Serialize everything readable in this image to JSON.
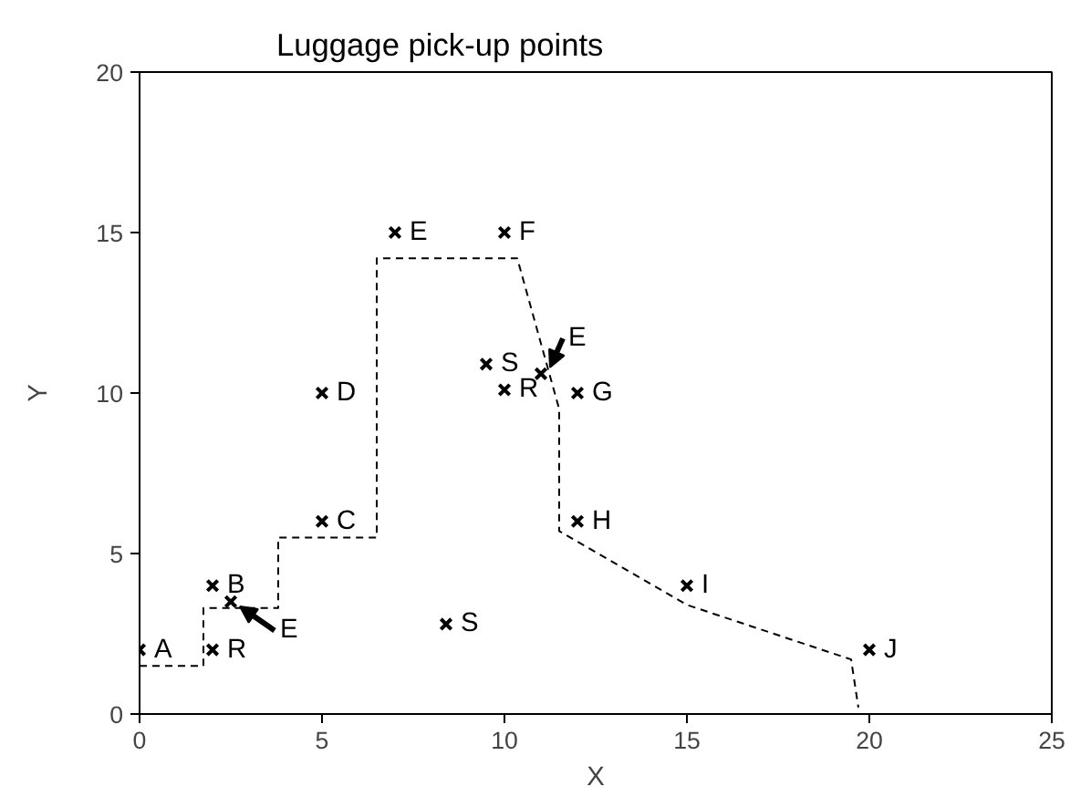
{
  "chart_data": {
    "type": "scatter",
    "title": "Luggage pick-up points",
    "xlabel": "X",
    "ylabel": "Y",
    "xlim": [
      0,
      25
    ],
    "ylim": [
      0,
      20
    ],
    "xticks": [
      0,
      5,
      10,
      15,
      20,
      25
    ],
    "yticks": [
      0,
      5,
      10,
      15,
      20
    ],
    "grid": false,
    "marker": "cross",
    "series": [
      {
        "color": "#000000",
        "x": [
          0,
          2,
          2,
          2.5,
          5,
          5,
          7,
          10,
          9.5,
          10,
          11,
          12,
          12,
          15,
          20,
          8.4
        ],
        "values": [
          2,
          4,
          2,
          3.5,
          6,
          10,
          15,
          15,
          10.9,
          10.1,
          10.6,
          10,
          6,
          4,
          2,
          2.8
        ],
        "value_labels": [
          "A",
          "B",
          "R",
          null,
          "C",
          "D",
          "E",
          "F",
          "S",
          "R",
          null,
          "G",
          "H",
          "I",
          "J",
          "S"
        ]
      },
      {
        "type": "line",
        "marker": "none",
        "line_style": "dashed",
        "color": "#000000",
        "x": [
          0,
          1.75,
          1.75,
          3.8,
          3.8,
          6.5,
          6.5,
          10.35,
          11.5,
          11.5,
          15,
          19.5,
          19.7
        ],
        "values": [
          1.5,
          1.5,
          3.3,
          3.3,
          5.5,
          5.5,
          14.2,
          14.2,
          9.5,
          5.7,
          3.4,
          1.7,
          0.2
        ]
      }
    ],
    "annotations": [
      {
        "text": "E",
        "x": 2.5,
        "y": 3.5
      },
      {
        "text": "E",
        "x": 11,
        "y": 10.6
      }
    ]
  }
}
